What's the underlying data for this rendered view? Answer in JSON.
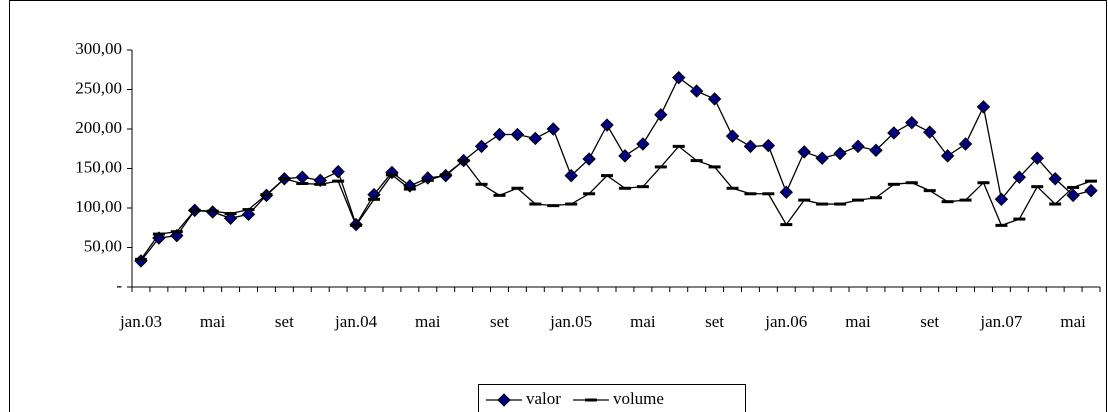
{
  "chart_data": {
    "type": "line",
    "categories": [
      "jan.03",
      null,
      null,
      null,
      "mai",
      null,
      null,
      null,
      "set",
      null,
      null,
      null,
      "jan.04",
      null,
      null,
      null,
      "mai",
      null,
      null,
      null,
      "set",
      null,
      null,
      null,
      "jan.05",
      null,
      null,
      null,
      "mai",
      null,
      null,
      null,
      "set",
      null,
      null,
      null,
      "jan.06",
      null,
      null,
      null,
      "mai",
      null,
      null,
      null,
      "set",
      null,
      null,
      null,
      "jan.07",
      null,
      null,
      null,
      "mai",
      null
    ],
    "series": [
      {
        "name": "valor",
        "color": "#000080",
        "marker": "diamond",
        "values": [
          33,
          62,
          65,
          97,
          95,
          87,
          92,
          116,
          137,
          139,
          135,
          146,
          79,
          117,
          145,
          128,
          138,
          141,
          160,
          178,
          193,
          193,
          188,
          200,
          141,
          162,
          205,
          166,
          181,
          218,
          265,
          248,
          238,
          191,
          178,
          179,
          120,
          171,
          163,
          169,
          178,
          173,
          195,
          208,
          196,
          166,
          181,
          228,
          111,
          139,
          163,
          137,
          116,
          122
        ]
      },
      {
        "name": "volume",
        "color": "#000000",
        "marker": "dash",
        "values": [
          35,
          67,
          70,
          97,
          96,
          93,
          98,
          117,
          137,
          131,
          130,
          134,
          78,
          111,
          142,
          124,
          135,
          142,
          160,
          130,
          116,
          125,
          105,
          103,
          105,
          118,
          141,
          125,
          127,
          152,
          178,
          160,
          152,
          125,
          118,
          118,
          79,
          110,
          105,
          105,
          110,
          113,
          130,
          132,
          122,
          108,
          110,
          132,
          78,
          86,
          127,
          105,
          126,
          134
        ]
      }
    ],
    "ylim": [
      0,
      300
    ],
    "yticks": [
      {
        "value": 0,
        "label": "-"
      },
      {
        "value": 50,
        "label": "50,00"
      },
      {
        "value": 100,
        "label": "100,00"
      },
      {
        "value": 150,
        "label": "150,00"
      },
      {
        "value": 200,
        "label": "200,00"
      },
      {
        "value": 250,
        "label": "250,00"
      },
      {
        "value": 300,
        "label": "300,00"
      }
    ],
    "grid": false,
    "legend": "bottom"
  }
}
